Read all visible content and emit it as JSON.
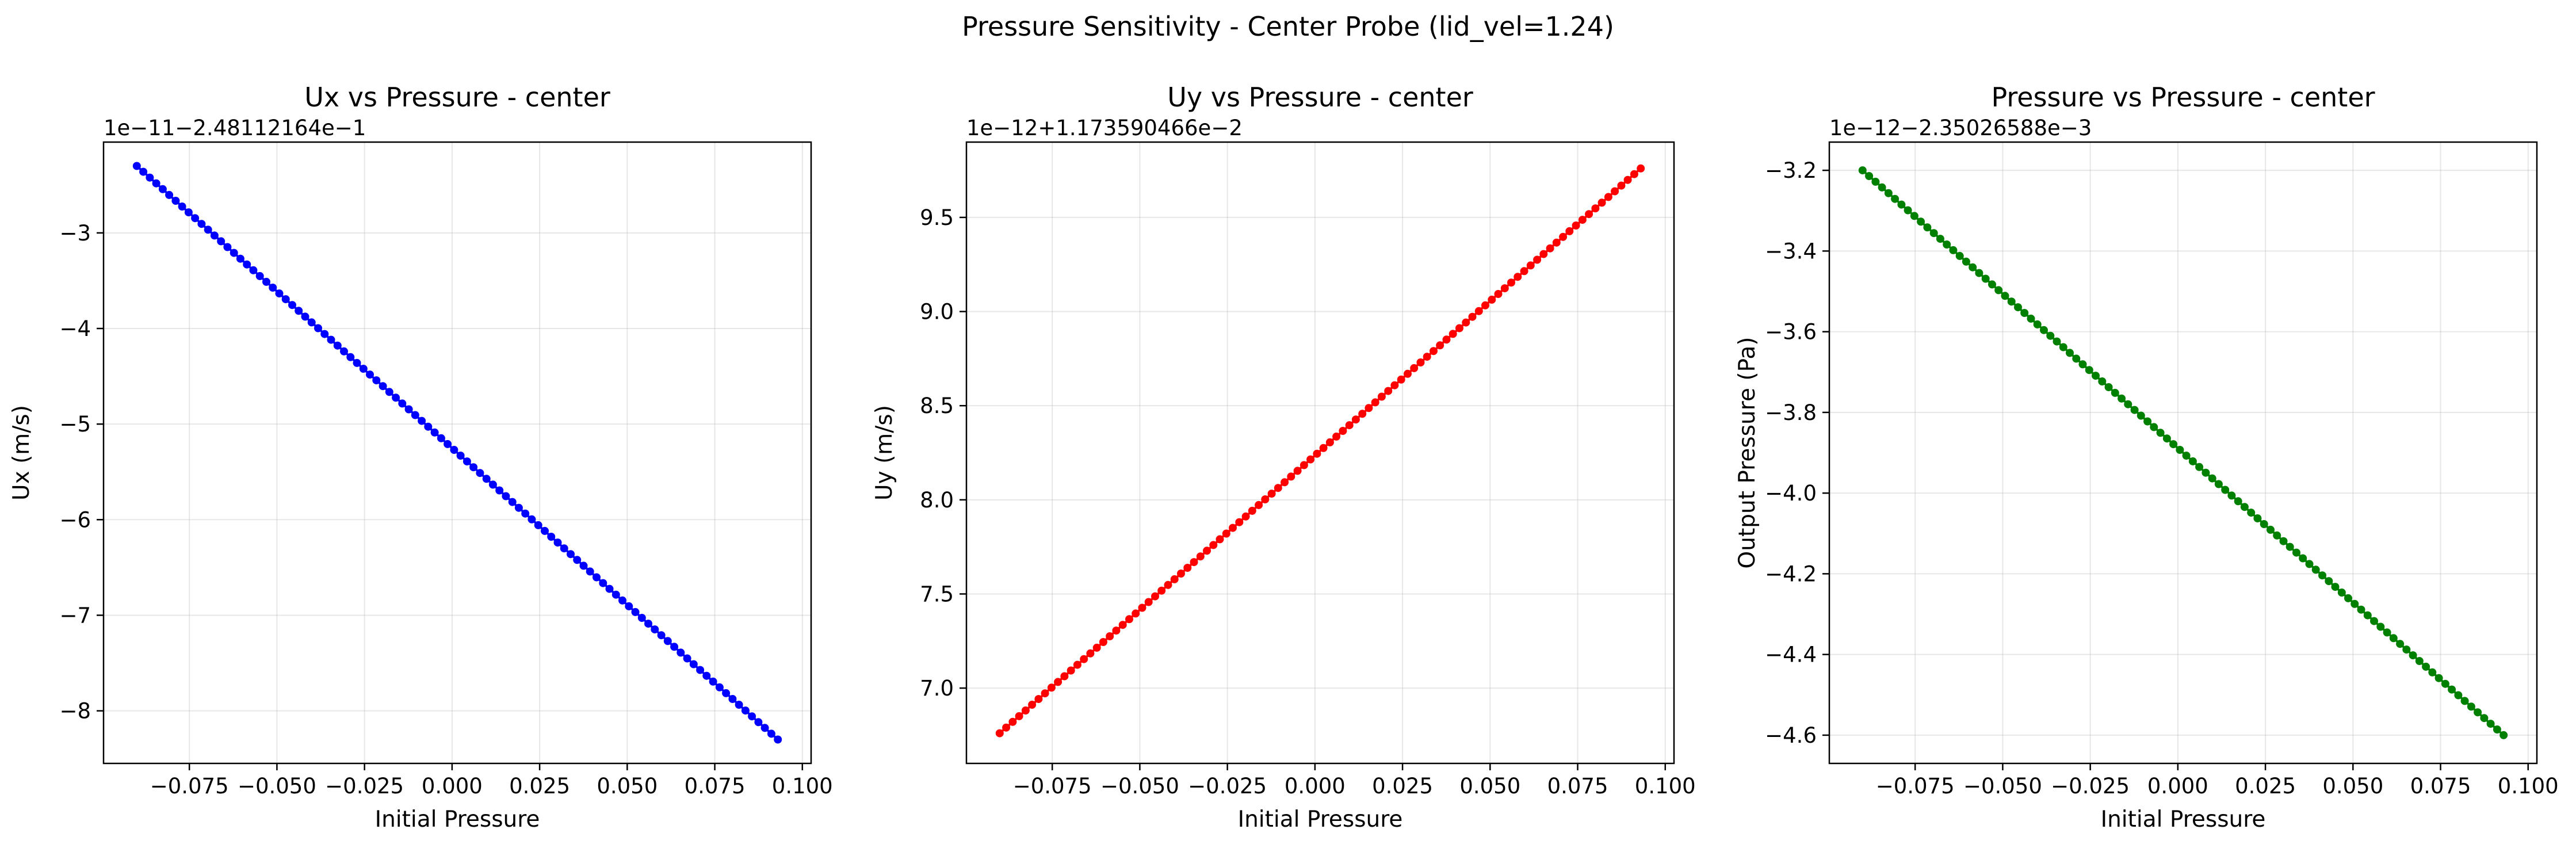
{
  "figure": {
    "suptitle": "Pressure Sensitivity - Center Probe (lid_vel=1.24)"
  },
  "chart_data": [
    {
      "type": "scatter",
      "title": "Ux vs Pressure - center",
      "xlabel": "Initial Pressure",
      "ylabel": "Ux (m/s)",
      "offset_label": "1e−11−2.48112164e−1",
      "color": "#0000ff",
      "grid": true,
      "legend": "none",
      "xlim": [
        -0.0995,
        0.1025
      ],
      "ylim": [
        -8.55,
        -2.05
      ],
      "xticks": [
        -0.075,
        -0.05,
        -0.025,
        0.0,
        0.025,
        0.05,
        0.075,
        0.1
      ],
      "xtick_labels": [
        "−0.075",
        "−0.050",
        "−0.025",
        "0.000",
        "0.025",
        "0.050",
        "0.075",
        "0.100"
      ],
      "yticks": [
        -3,
        -4,
        -5,
        -6,
        -7,
        -8
      ],
      "ytick_labels": [
        "−3",
        "−4",
        "−5",
        "−6",
        "−7",
        "−8"
      ],
      "n_points": 100,
      "x_range": [
        -0.09,
        0.093
      ],
      "y_range": [
        -2.3,
        -8.3
      ]
    },
    {
      "type": "scatter",
      "title": "Uy vs Pressure - center",
      "xlabel": "Initial Pressure",
      "ylabel": "Uy (m/s)",
      "offset_label": "1e−12+1.173590466e−2",
      "color": "#ff0000",
      "grid": true,
      "legend": "none",
      "xlim": [
        -0.0995,
        0.1025
      ],
      "ylim": [
        6.6,
        9.9
      ],
      "xticks": [
        -0.075,
        -0.05,
        -0.025,
        0.0,
        0.025,
        0.05,
        0.075,
        0.1
      ],
      "xtick_labels": [
        "−0.075",
        "−0.050",
        "−0.025",
        "0.000",
        "0.025",
        "0.050",
        "0.075",
        "0.100"
      ],
      "yticks": [
        7.0,
        7.5,
        8.0,
        8.5,
        9.0,
        9.5
      ],
      "ytick_labels": [
        "7.0",
        "7.5",
        "8.0",
        "8.5",
        "9.0",
        "9.5"
      ],
      "n_points": 100,
      "x_range": [
        -0.09,
        0.093
      ],
      "y_range": [
        6.76,
        9.76
      ]
    },
    {
      "type": "scatter",
      "title": "Pressure vs Pressure - center",
      "xlabel": "Initial Pressure",
      "ylabel": "Output Pressure (Pa)",
      "offset_label": "1e−12−2.35026588e−3",
      "color": "#008000",
      "grid": true,
      "legend": "none",
      "xlim": [
        -0.0995,
        0.1025
      ],
      "ylim": [
        -4.67,
        -3.13
      ],
      "xticks": [
        -0.075,
        -0.05,
        -0.025,
        0.0,
        0.025,
        0.05,
        0.075,
        0.1
      ],
      "xtick_labels": [
        "−0.075",
        "−0.050",
        "−0.025",
        "0.000",
        "0.025",
        "0.050",
        "0.075",
        "0.100"
      ],
      "yticks": [
        -3.2,
        -3.4,
        -3.6,
        -3.8,
        -4.0,
        -4.2,
        -4.4,
        -4.6
      ],
      "ytick_labels": [
        "−3.2",
        "−3.4",
        "−3.6",
        "−3.8",
        "−4.0",
        "−4.2",
        "−4.4",
        "−4.6"
      ],
      "n_points": 100,
      "x_range": [
        -0.09,
        0.093
      ],
      "y_range": [
        -3.2,
        -4.6
      ]
    }
  ]
}
